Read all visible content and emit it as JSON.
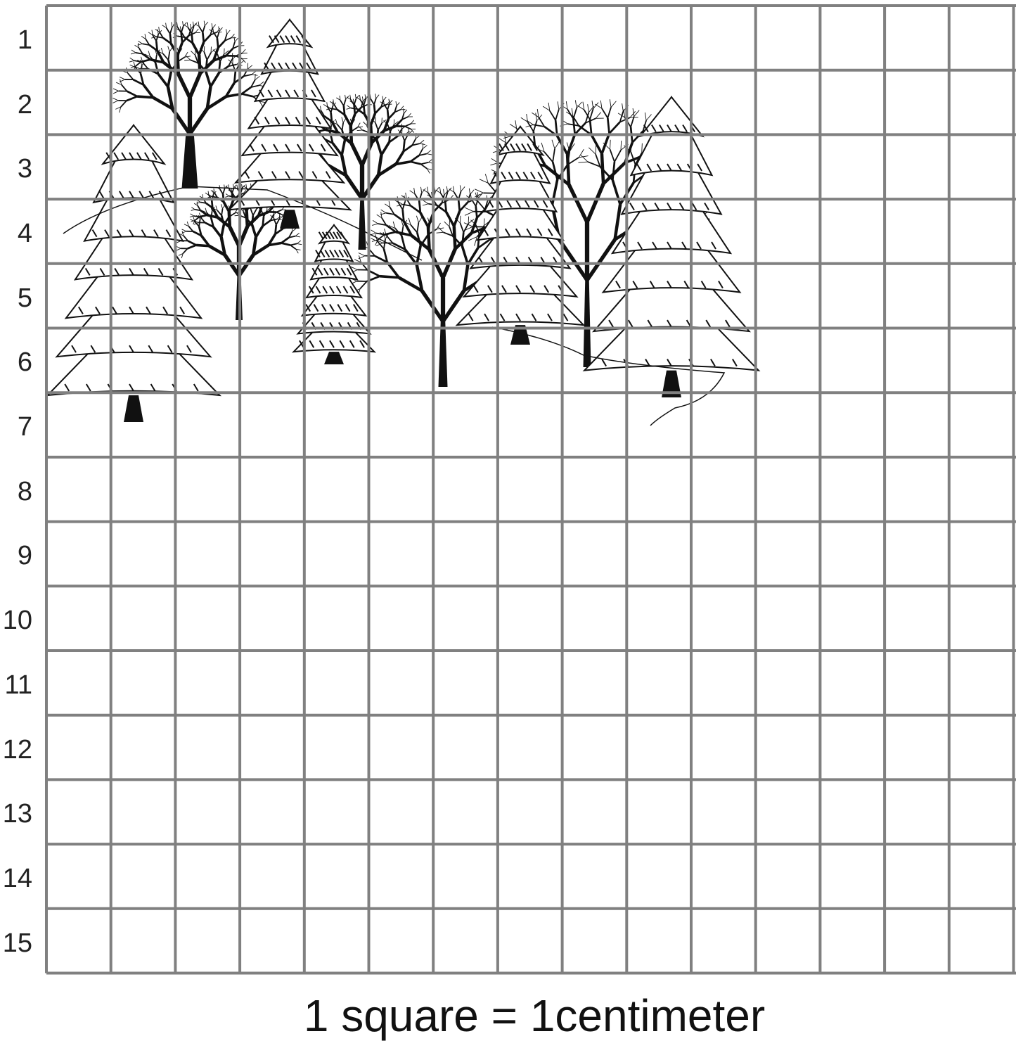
{
  "row_labels": [
    "1",
    "2",
    "3",
    "4",
    "5",
    "6",
    "7",
    "8",
    "9",
    "10",
    "11",
    "12",
    "13",
    "14",
    "15"
  ],
  "caption": "1 square = 1centimeter",
  "grid": {
    "rows": 15,
    "columns": 15,
    "line_color": "#808080"
  },
  "illustration": {
    "subject": "trees",
    "pine_count": 5,
    "bare_tree_count": 5,
    "ink_color": "#111111"
  }
}
